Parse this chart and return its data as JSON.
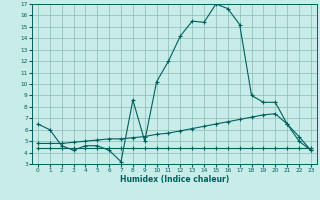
{
  "xlabel": "Humidex (Indice chaleur)",
  "bg_color": "#c8ece8",
  "grid_color": "#8bbcb8",
  "line_color": "#006060",
  "xlim": [
    -0.5,
    23.5
  ],
  "ylim": [
    3,
    17
  ],
  "xticks": [
    0,
    1,
    2,
    3,
    4,
    5,
    6,
    7,
    8,
    9,
    10,
    11,
    12,
    13,
    14,
    15,
    16,
    17,
    18,
    19,
    20,
    21,
    22,
    23
  ],
  "yticks": [
    3,
    4,
    5,
    6,
    7,
    8,
    9,
    10,
    11,
    12,
    13,
    14,
    15,
    16,
    17
  ],
  "line1_x": [
    0,
    1,
    2,
    3,
    4,
    5,
    6,
    7,
    8,
    9,
    10,
    11,
    12,
    13,
    14,
    15,
    16,
    17,
    18,
    19,
    20,
    21,
    22,
    23
  ],
  "line1_y": [
    6.5,
    6.0,
    4.6,
    4.2,
    4.6,
    4.6,
    4.2,
    3.2,
    8.6,
    5.0,
    10.2,
    12.0,
    14.2,
    15.5,
    15.4,
    17.0,
    16.6,
    15.2,
    9.0,
    8.4,
    8.4,
    6.5,
    5.0,
    4.2
  ],
  "line2_x": [
    0,
    1,
    2,
    3,
    4,
    5,
    6,
    7,
    8,
    9,
    10,
    11,
    12,
    13,
    14,
    15,
    16,
    17,
    18,
    19,
    20,
    21,
    22,
    23
  ],
  "line2_y": [
    4.4,
    4.4,
    4.4,
    4.4,
    4.4,
    4.4,
    4.4,
    4.4,
    4.4,
    4.4,
    4.4,
    4.4,
    4.4,
    4.4,
    4.4,
    4.4,
    4.4,
    4.4,
    4.4,
    4.4,
    4.4,
    4.4,
    4.4,
    4.4
  ],
  "line3_x": [
    0,
    1,
    2,
    3,
    4,
    5,
    6,
    7,
    8,
    9,
    10,
    11,
    12,
    13,
    14,
    15,
    16,
    17,
    18,
    19,
    20,
    21,
    22,
    23
  ],
  "line3_y": [
    4.8,
    4.8,
    4.8,
    4.9,
    5.0,
    5.1,
    5.2,
    5.2,
    5.3,
    5.4,
    5.6,
    5.7,
    5.9,
    6.1,
    6.3,
    6.5,
    6.7,
    6.9,
    7.1,
    7.3,
    7.4,
    6.5,
    5.4,
    4.2
  ]
}
